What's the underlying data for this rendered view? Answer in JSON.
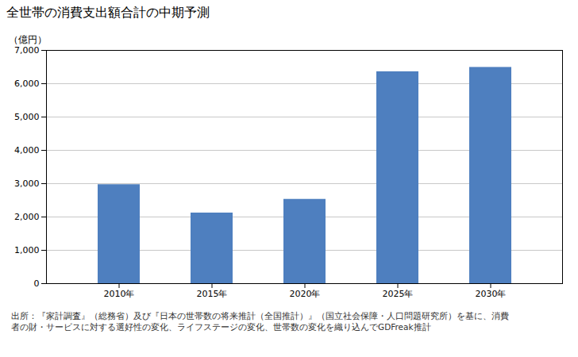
{
  "chart_data": {
    "type": "bar",
    "title": "全世帯の消費支出額合計の中期予測",
    "ylabel": "（億円）",
    "categories": [
      "2010年",
      "2015年",
      "2020年",
      "2025年",
      "2030年"
    ],
    "values": [
      2970,
      2120,
      2530,
      6360,
      6490
    ],
    "color": "#4E7FBF",
    "ylim": [
      0,
      7000
    ],
    "yticks": [
      0,
      {
        "value": 1000,
        "label": "1,000"
      },
      {
        "value": 2000,
        "label": "2,000"
      },
      {
        "value": 3000,
        "label": "3,000"
      },
      {
        "value": 4000,
        "label": "4,000"
      },
      {
        "value": 5000,
        "label": "5,000"
      },
      {
        "value": 6000,
        "label": "6,000"
      },
      {
        "value": 7000,
        "label": "7,000"
      }
    ],
    "grid": true,
    "footnote": [
      "出所：『家計調査』（総務省）及び『日本の世帯数の将来推計（全国推計）』（国立社会保障・人口問題研究所）を基に、消費",
      "者の財・サービスに対する選好性の変化、ライフステージの変化、世帯数の変化を織り込んでGDFreak推計"
    ]
  }
}
